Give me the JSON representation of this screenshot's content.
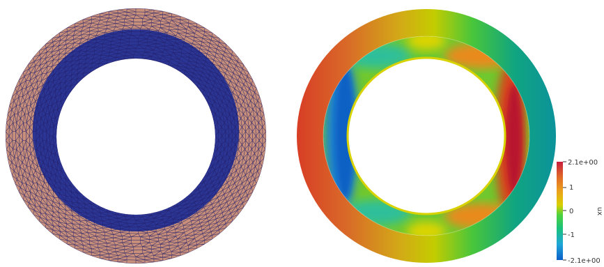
{
  "mesh_view": {
    "outer_fill": "#c8907a",
    "inner_fill": "#2b3594",
    "edge_color": "#23206b"
  },
  "field_view": {
    "colorbar": {
      "title": "ux",
      "max_label": "2.1e+00",
      "min_label": "-2.1e+00",
      "tick_labels": [
        "1",
        "0",
        "-1"
      ],
      "range": [
        -2.1,
        2.1
      ],
      "colors": [
        "#0b5ec9",
        "#1fa6d8",
        "#18c27c",
        "#4fd23c",
        "#d9cf00",
        "#eba21b",
        "#e06b26",
        "#c81e3e"
      ]
    }
  }
}
